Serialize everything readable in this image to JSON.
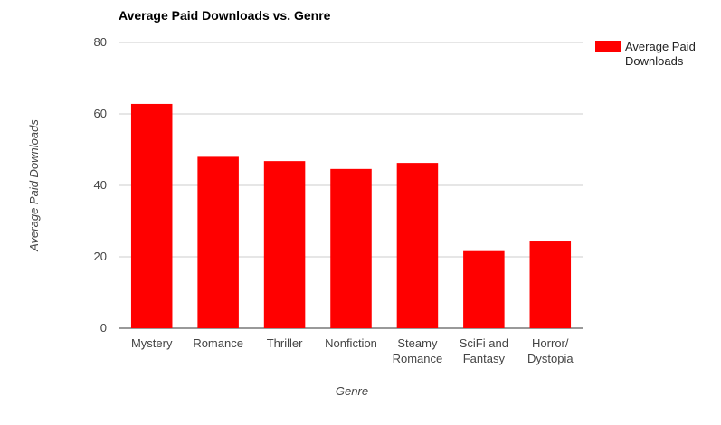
{
  "chart_data": {
    "type": "bar",
    "title": "Average Paid Downloads vs. Genre",
    "xlabel": "Genre",
    "ylabel": "Average Paid Downloads",
    "ylim": [
      0,
      80
    ],
    "yticks": [
      0,
      20,
      40,
      60,
      80
    ],
    "grid": true,
    "legend_position": "top-right",
    "categories": [
      [
        "Mystery"
      ],
      [
        "Romance"
      ],
      [
        "Thriller"
      ],
      [
        "Nonfiction"
      ],
      [
        "Steamy",
        "Romance"
      ],
      [
        "SciFi and",
        "Fantasy"
      ],
      [
        "Horror/",
        "Dystopia"
      ]
    ],
    "series": [
      {
        "name": [
          "Average Paid",
          "Downloads"
        ],
        "color": "#ff0000",
        "values": [
          62.8,
          48.0,
          46.8,
          44.6,
          46.3,
          21.6,
          24.3
        ]
      }
    ]
  }
}
